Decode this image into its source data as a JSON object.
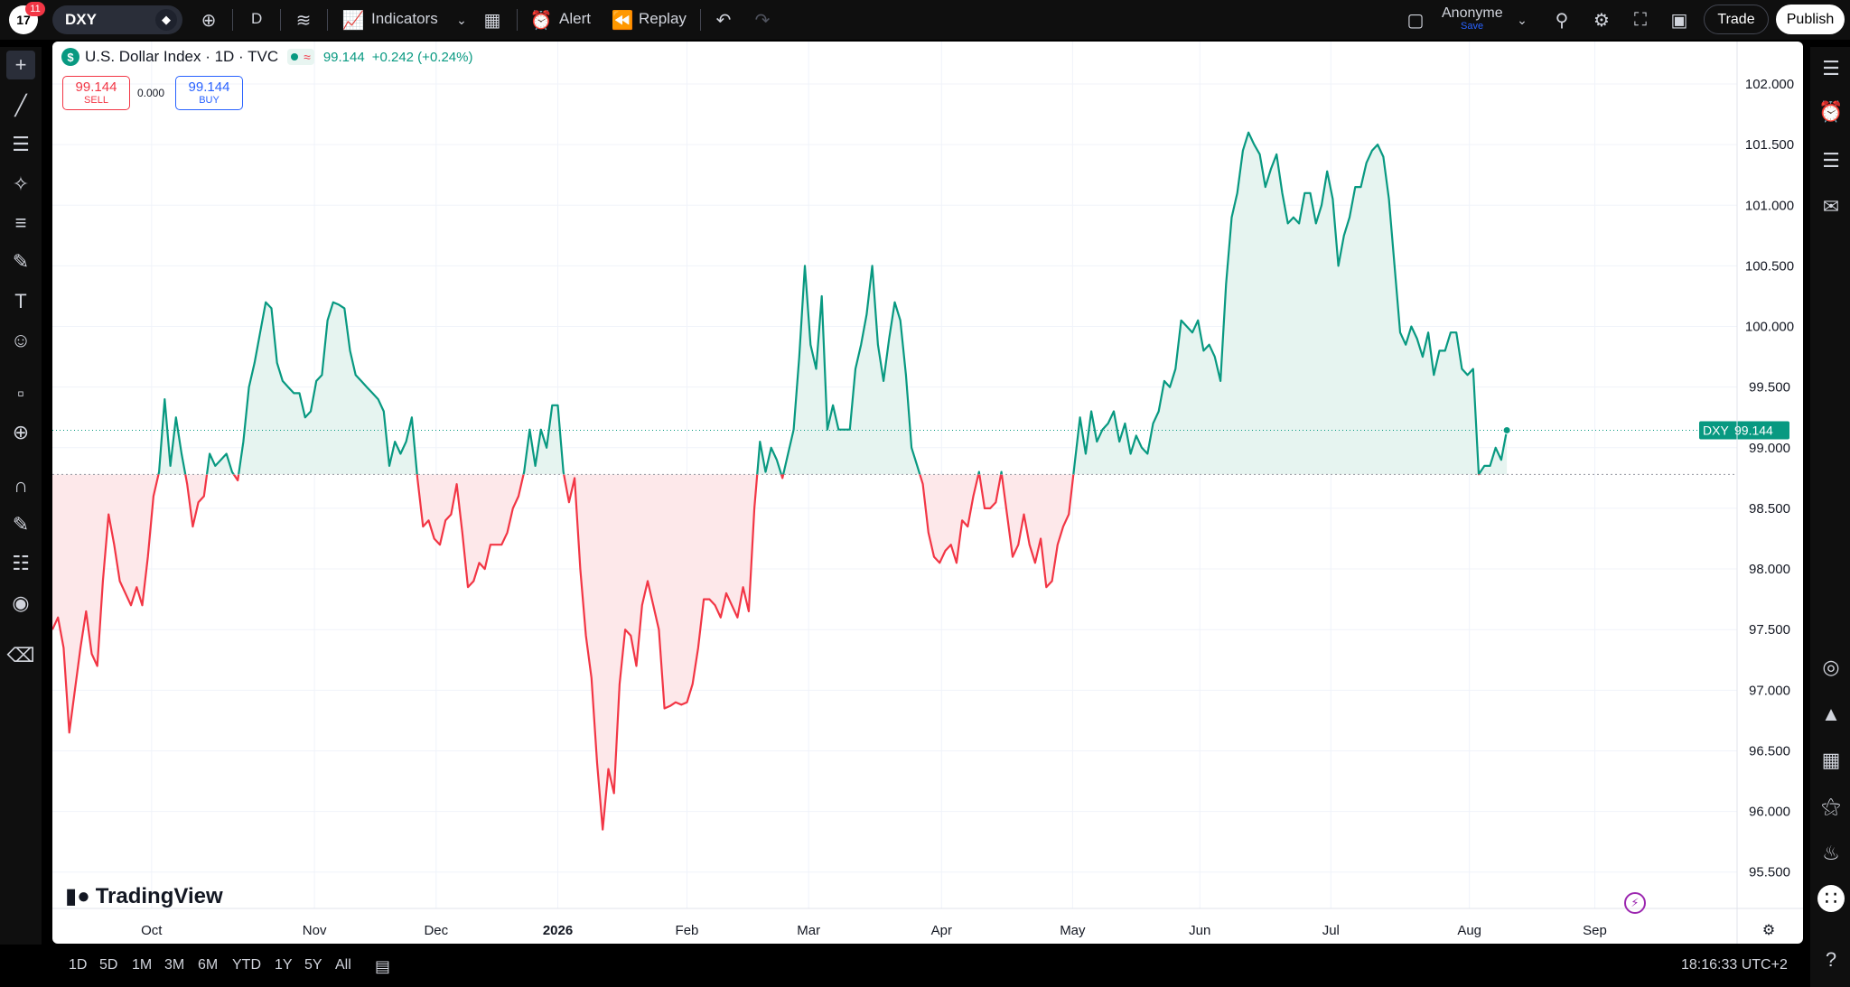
{
  "topbar": {
    "logo_text": "17",
    "notification_count": "11",
    "symbol": "DXY",
    "interval": "D",
    "indicators_label": "Indicators",
    "alert_label": "Alert",
    "replay_label": "Replay",
    "user_name": "Anonyme",
    "user_save": "Save",
    "trade_label": "Trade",
    "publish_label": "Publish"
  },
  "legend": {
    "s_badge": "$",
    "title": "U.S. Dollar Index · 1D · TVC",
    "wave": "≈",
    "price": "99.144",
    "change": "+0.242 (+0.24%)"
  },
  "order": {
    "sell_price": "99.144",
    "sell_label": "SELL",
    "spread": "0.000",
    "buy_price": "99.144",
    "buy_label": "BUY"
  },
  "brand": "TradingView",
  "bottombar": {
    "ranges": [
      "1D",
      "5D",
      "1M",
      "3M",
      "6M",
      "YTD",
      "1Y",
      "5Y",
      "All"
    ],
    "clock": "18:16:33 UTC+2"
  },
  "colors": {
    "up": "#089981",
    "down": "#f23645",
    "up_fill": "#e6f4f0",
    "down_fill": "#fde8ea"
  },
  "chart_data": {
    "type": "area",
    "symbol": "DXY",
    "baseline": 98.78,
    "last_value": 99.144,
    "last_label": "DXY",
    "ylim": [
      95.2,
      102.35
    ],
    "y_ticks": [
      "95.500",
      "96.000",
      "96.500",
      "97.000",
      "97.500",
      "98.000",
      "98.500",
      "99.000",
      "99.500",
      "100.000",
      "100.500",
      "101.000",
      "101.500",
      "102.000"
    ],
    "x_ticks": [
      {
        "label": "Oct",
        "t": 53
      },
      {
        "label": "Nov",
        "t": 140
      },
      {
        "label": "Dec",
        "t": 205
      },
      {
        "label": "2026",
        "t": 270,
        "bold": true
      },
      {
        "label": "Feb",
        "t": 339
      },
      {
        "label": "Mar",
        "t": 404
      },
      {
        "label": "Apr",
        "t": 475
      },
      {
        "label": "May",
        "t": 545
      },
      {
        "label": "Jun",
        "t": 613
      },
      {
        "label": "Jul",
        "t": 683
      },
      {
        "label": "Aug",
        "t": 757
      },
      {
        "label": "Sep",
        "t": 824
      }
    ],
    "points": [
      [
        0,
        97.5
      ],
      [
        3,
        97.6
      ],
      [
        6,
        97.35
      ],
      [
        9,
        96.65
      ],
      [
        12,
        97.0
      ],
      [
        15,
        97.35
      ],
      [
        18,
        97.65
      ],
      [
        21,
        97.3
      ],
      [
        24,
        97.2
      ],
      [
        27,
        97.9
      ],
      [
        30,
        98.45
      ],
      [
        33,
        98.2
      ],
      [
        36,
        97.9
      ],
      [
        39,
        97.8
      ],
      [
        42,
        97.7
      ],
      [
        45,
        97.85
      ],
      [
        48,
        97.7
      ],
      [
        51,
        98.1
      ],
      [
        54,
        98.6
      ],
      [
        57,
        98.8
      ],
      [
        60,
        99.4
      ],
      [
        63,
        98.85
      ],
      [
        66,
        99.25
      ],
      [
        69,
        98.95
      ],
      [
        72,
        98.7
      ],
      [
        75,
        98.35
      ],
      [
        78,
        98.55
      ],
      [
        81,
        98.6
      ],
      [
        84,
        98.95
      ],
      [
        87,
        98.85
      ],
      [
        90,
        98.9
      ],
      [
        93,
        98.95
      ],
      [
        96,
        98.8
      ],
      [
        99,
        98.73
      ],
      [
        102,
        99.05
      ],
      [
        105,
        99.5
      ],
      [
        108,
        99.7
      ],
      [
        111,
        99.95
      ],
      [
        114,
        100.2
      ],
      [
        117,
        100.15
      ],
      [
        120,
        99.7
      ],
      [
        123,
        99.55
      ],
      [
        126,
        99.5
      ],
      [
        129,
        99.45
      ],
      [
        132,
        99.45
      ],
      [
        135,
        99.25
      ],
      [
        138,
        99.3
      ],
      [
        141,
        99.55
      ],
      [
        144,
        99.6
      ],
      [
        147,
        100.05
      ],
      [
        150,
        100.2
      ],
      [
        153,
        100.18
      ],
      [
        156,
        100.15
      ],
      [
        159,
        99.8
      ],
      [
        162,
        99.6
      ],
      [
        165,
        99.55
      ],
      [
        168,
        99.5
      ],
      [
        171,
        99.45
      ],
      [
        174,
        99.4
      ],
      [
        177,
        99.3
      ],
      [
        180,
        98.85
      ],
      [
        183,
        99.05
      ],
      [
        186,
        98.95
      ],
      [
        189,
        99.05
      ],
      [
        192,
        99.25
      ],
      [
        195,
        98.75
      ],
      [
        198,
        98.35
      ],
      [
        201,
        98.4
      ],
      [
        204,
        98.25
      ],
      [
        207,
        98.2
      ],
      [
        210,
        98.4
      ],
      [
        213,
        98.45
      ],
      [
        216,
        98.7
      ],
      [
        219,
        98.3
      ],
      [
        222,
        97.85
      ],
      [
        225,
        97.9
      ],
      [
        228,
        98.05
      ],
      [
        231,
        98.0
      ],
      [
        234,
        98.2
      ],
      [
        237,
        98.2
      ],
      [
        240,
        98.2
      ],
      [
        243,
        98.3
      ],
      [
        246,
        98.5
      ],
      [
        249,
        98.6
      ],
      [
        252,
        98.8
      ],
      [
        255,
        99.15
      ],
      [
        258,
        98.85
      ],
      [
        261,
        99.15
      ],
      [
        264,
        99.0
      ],
      [
        267,
        99.35
      ],
      [
        270,
        99.35
      ],
      [
        273,
        98.8
      ],
      [
        276,
        98.55
      ],
      [
        279,
        98.75
      ],
      [
        282,
        98.0
      ],
      [
        285,
        97.45
      ],
      [
        288,
        97.1
      ],
      [
        291,
        96.4
      ],
      [
        294,
        95.85
      ],
      [
        297,
        96.35
      ],
      [
        300,
        96.15
      ],
      [
        303,
        97.05
      ],
      [
        306,
        97.5
      ],
      [
        309,
        97.45
      ],
      [
        312,
        97.2
      ],
      [
        315,
        97.7
      ],
      [
        318,
        97.9
      ],
      [
        321,
        97.7
      ],
      [
        324,
        97.5
      ],
      [
        327,
        96.85
      ],
      [
        330,
        96.87
      ],
      [
        333,
        96.9
      ],
      [
        336,
        96.88
      ],
      [
        339,
        96.9
      ],
      [
        342,
        97.05
      ],
      [
        345,
        97.35
      ],
      [
        348,
        97.75
      ],
      [
        351,
        97.75
      ],
      [
        354,
        97.7
      ],
      [
        357,
        97.6
      ],
      [
        360,
        97.8
      ],
      [
        363,
        97.7
      ],
      [
        366,
        97.6
      ],
      [
        369,
        97.85
      ],
      [
        372,
        97.65
      ],
      [
        375,
        98.5
      ],
      [
        378,
        99.05
      ],
      [
        381,
        98.8
      ],
      [
        384,
        99.0
      ],
      [
        387,
        98.9
      ],
      [
        390,
        98.75
      ],
      [
        393,
        98.95
      ],
      [
        396,
        99.15
      ],
      [
        399,
        99.75
      ],
      [
        402,
        100.5
      ],
      [
        405,
        99.85
      ],
      [
        408,
        99.65
      ],
      [
        411,
        100.25
      ],
      [
        414,
        99.15
      ],
      [
        417,
        99.35
      ],
      [
        420,
        99.15
      ],
      [
        423,
        99.15
      ],
      [
        426,
        99.15
      ],
      [
        429,
        99.65
      ],
      [
        432,
        99.85
      ],
      [
        435,
        100.1
      ],
      [
        438,
        100.5
      ],
      [
        441,
        99.85
      ],
      [
        444,
        99.55
      ],
      [
        447,
        99.9
      ],
      [
        450,
        100.2
      ],
      [
        453,
        100.05
      ],
      [
        456,
        99.6
      ],
      [
        459,
        99.0
      ],
      [
        462,
        98.85
      ],
      [
        465,
        98.7
      ],
      [
        468,
        98.3
      ],
      [
        471,
        98.1
      ],
      [
        474,
        98.05
      ],
      [
        477,
        98.15
      ],
      [
        480,
        98.2
      ],
      [
        483,
        98.05
      ],
      [
        486,
        98.4
      ],
      [
        489,
        98.35
      ],
      [
        492,
        98.6
      ],
      [
        495,
        98.8
      ],
      [
        498,
        98.5
      ],
      [
        501,
        98.5
      ],
      [
        504,
        98.55
      ],
      [
        507,
        98.8
      ],
      [
        510,
        98.45
      ],
      [
        513,
        98.1
      ],
      [
        516,
        98.2
      ],
      [
        519,
        98.45
      ],
      [
        522,
        98.2
      ],
      [
        525,
        98.05
      ],
      [
        528,
        98.25
      ],
      [
        531,
        97.85
      ],
      [
        534,
        97.9
      ],
      [
        537,
        98.2
      ],
      [
        540,
        98.35
      ],
      [
        543,
        98.45
      ],
      [
        546,
        98.85
      ],
      [
        549,
        99.25
      ],
      [
        552,
        98.95
      ],
      [
        555,
        99.3
      ],
      [
        558,
        99.05
      ],
      [
        561,
        99.15
      ],
      [
        564,
        99.2
      ],
      [
        567,
        99.3
      ],
      [
        570,
        99.05
      ],
      [
        573,
        99.2
      ],
      [
        576,
        98.95
      ],
      [
        579,
        99.1
      ],
      [
        582,
        99.0
      ],
      [
        585,
        98.95
      ],
      [
        588,
        99.2
      ],
      [
        591,
        99.3
      ],
      [
        594,
        99.55
      ],
      [
        597,
        99.5
      ],
      [
        600,
        99.65
      ],
      [
        603,
        100.05
      ],
      [
        606,
        100.0
      ],
      [
        609,
        99.95
      ],
      [
        612,
        100.05
      ],
      [
        615,
        99.8
      ],
      [
        618,
        99.85
      ],
      [
        621,
        99.75
      ],
      [
        624,
        99.55
      ],
      [
        627,
        100.35
      ],
      [
        630,
        100.9
      ],
      [
        633,
        101.1
      ],
      [
        636,
        101.45
      ],
      [
        639,
        101.6
      ],
      [
        642,
        101.5
      ],
      [
        645,
        101.42
      ],
      [
        648,
        101.15
      ],
      [
        651,
        101.3
      ],
      [
        654,
        101.42
      ],
      [
        657,
        101.1
      ],
      [
        660,
        100.85
      ],
      [
        663,
        100.9
      ],
      [
        666,
        100.85
      ],
      [
        669,
        101.1
      ],
      [
        672,
        101.1
      ],
      [
        675,
        100.85
      ],
      [
        678,
        101.0
      ],
      [
        681,
        101.28
      ],
      [
        684,
        101.05
      ],
      [
        687,
        100.5
      ],
      [
        690,
        100.75
      ],
      [
        693,
        100.9
      ],
      [
        696,
        101.15
      ],
      [
        699,
        101.15
      ],
      [
        702,
        101.35
      ],
      [
        705,
        101.45
      ],
      [
        708,
        101.5
      ],
      [
        711,
        101.4
      ],
      [
        714,
        101.05
      ],
      [
        717,
        100.5
      ],
      [
        720,
        99.95
      ],
      [
        723,
        99.85
      ],
      [
        726,
        100.0
      ],
      [
        729,
        99.9
      ],
      [
        732,
        99.75
      ],
      [
        735,
        99.95
      ],
      [
        738,
        99.6
      ],
      [
        741,
        99.8
      ],
      [
        744,
        99.8
      ],
      [
        747,
        99.95
      ],
      [
        750,
        99.95
      ],
      [
        753,
        99.65
      ],
      [
        756,
        99.6
      ],
      [
        759,
        99.65
      ],
      [
        762,
        98.78
      ],
      [
        765,
        98.85
      ],
      [
        768,
        98.85
      ],
      [
        771,
        99.0
      ],
      [
        774,
        98.9
      ],
      [
        777,
        99.144
      ]
    ]
  }
}
